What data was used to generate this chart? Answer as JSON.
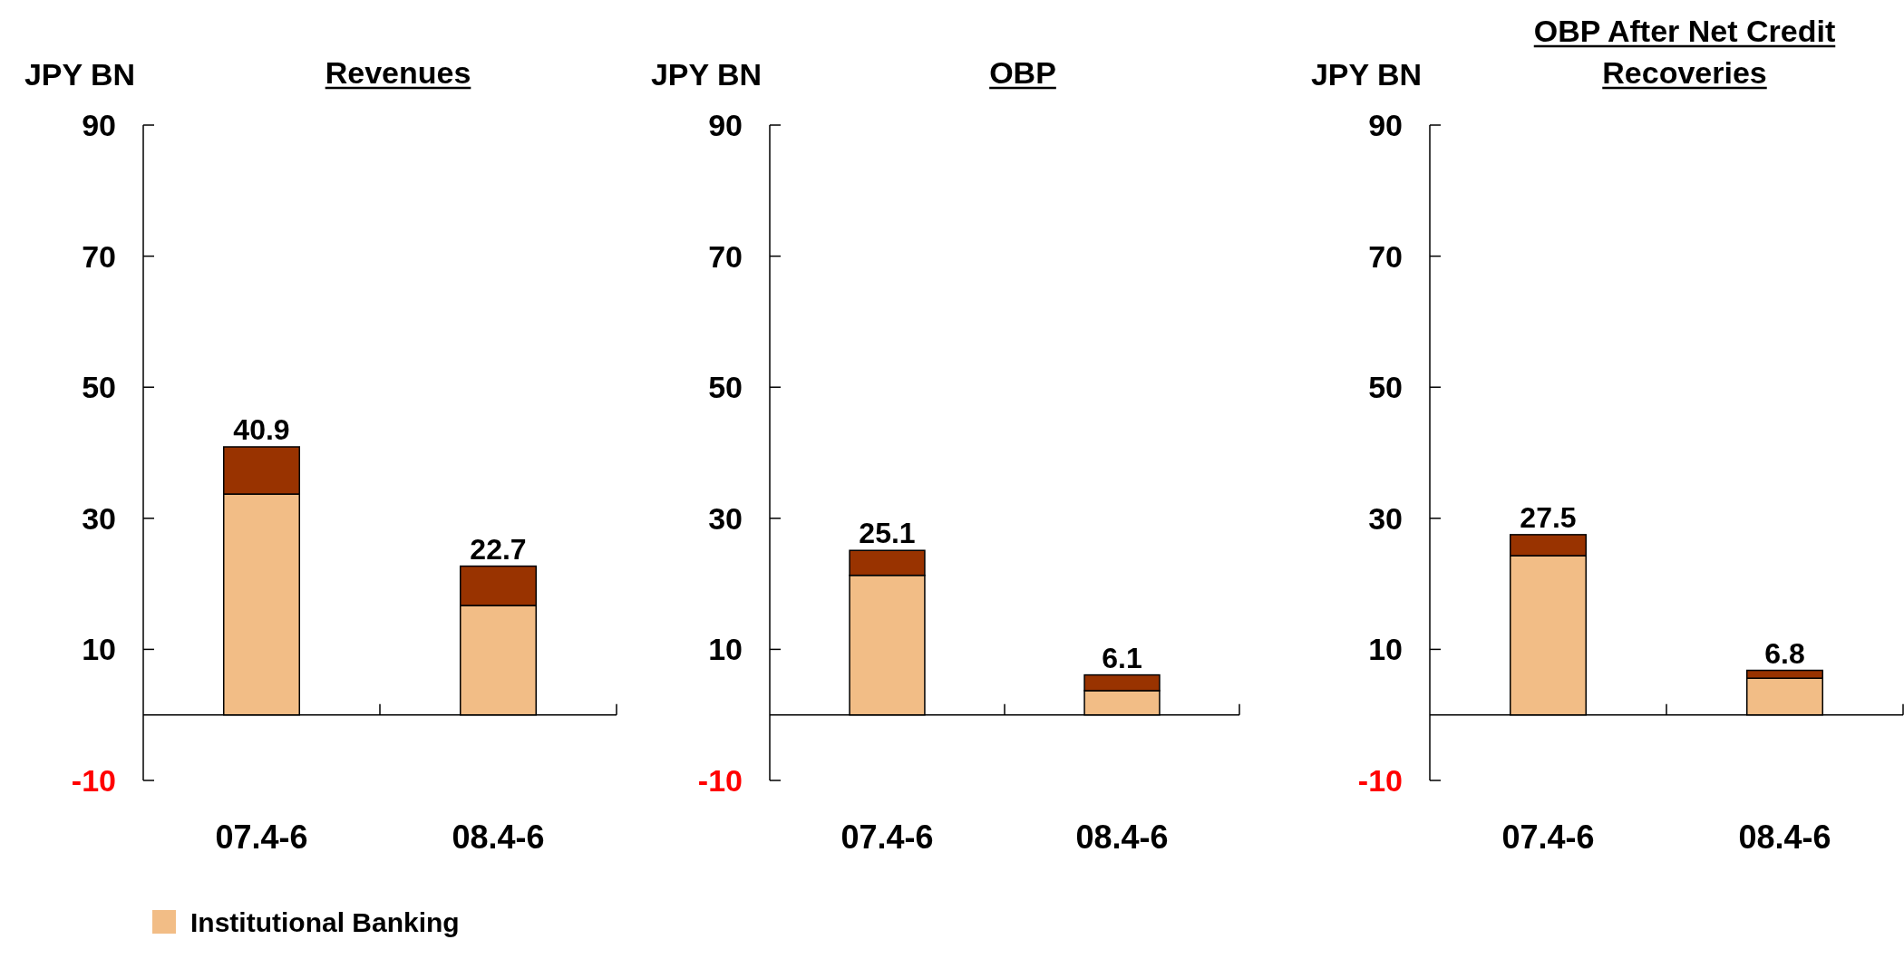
{
  "chart_data": [
    {
      "type": "bar",
      "title": "Revenues",
      "ylabel": "JPY BN",
      "categories": [
        "07.4-6",
        "08.4-6"
      ],
      "stacked": true,
      "ylim": [
        -10,
        90
      ],
      "yticks": [
        -10,
        10,
        30,
        50,
        70,
        90
      ],
      "legend": "bottom",
      "totals": [
        "40.9",
        "22.7"
      ],
      "series": [
        {
          "name": "Institutional Banking",
          "color": "#f2bd86",
          "values": [
            33.7,
            16.7
          ]
        },
        {
          "color": "#993300",
          "values": [
            7.2,
            6.0
          ]
        }
      ]
    },
    {
      "type": "bar",
      "title": "OBP",
      "ylabel": "JPY BN",
      "categories": [
        "07.4-6",
        "08.4-6"
      ],
      "stacked": true,
      "ylim": [
        -10,
        90
      ],
      "yticks": [
        -10,
        10,
        30,
        50,
        70,
        90
      ],
      "totals": [
        "25.1",
        "6.1"
      ],
      "series": [
        {
          "name": "Institutional Banking",
          "color": "#f2bd86",
          "values": [
            21.3,
            3.7
          ]
        },
        {
          "color": "#993300",
          "values": [
            3.8,
            2.4
          ]
        }
      ]
    },
    {
      "type": "bar",
      "title": "OBP After Net Credit Recoveries",
      "ylabel": "JPY BN",
      "categories": [
        "07.4-6",
        "08.4-6"
      ],
      "stacked": true,
      "ylim": [
        -10,
        90
      ],
      "yticks": [
        -10,
        10,
        30,
        50,
        70,
        90
      ],
      "totals": [
        "27.5",
        "6.8"
      ],
      "series": [
        {
          "name": "Institutional Banking",
          "color": "#f2bd86",
          "values": [
            24.3,
            5.6
          ]
        },
        {
          "color": "#993300",
          "values": [
            3.2,
            1.2
          ]
        }
      ]
    }
  ]
}
